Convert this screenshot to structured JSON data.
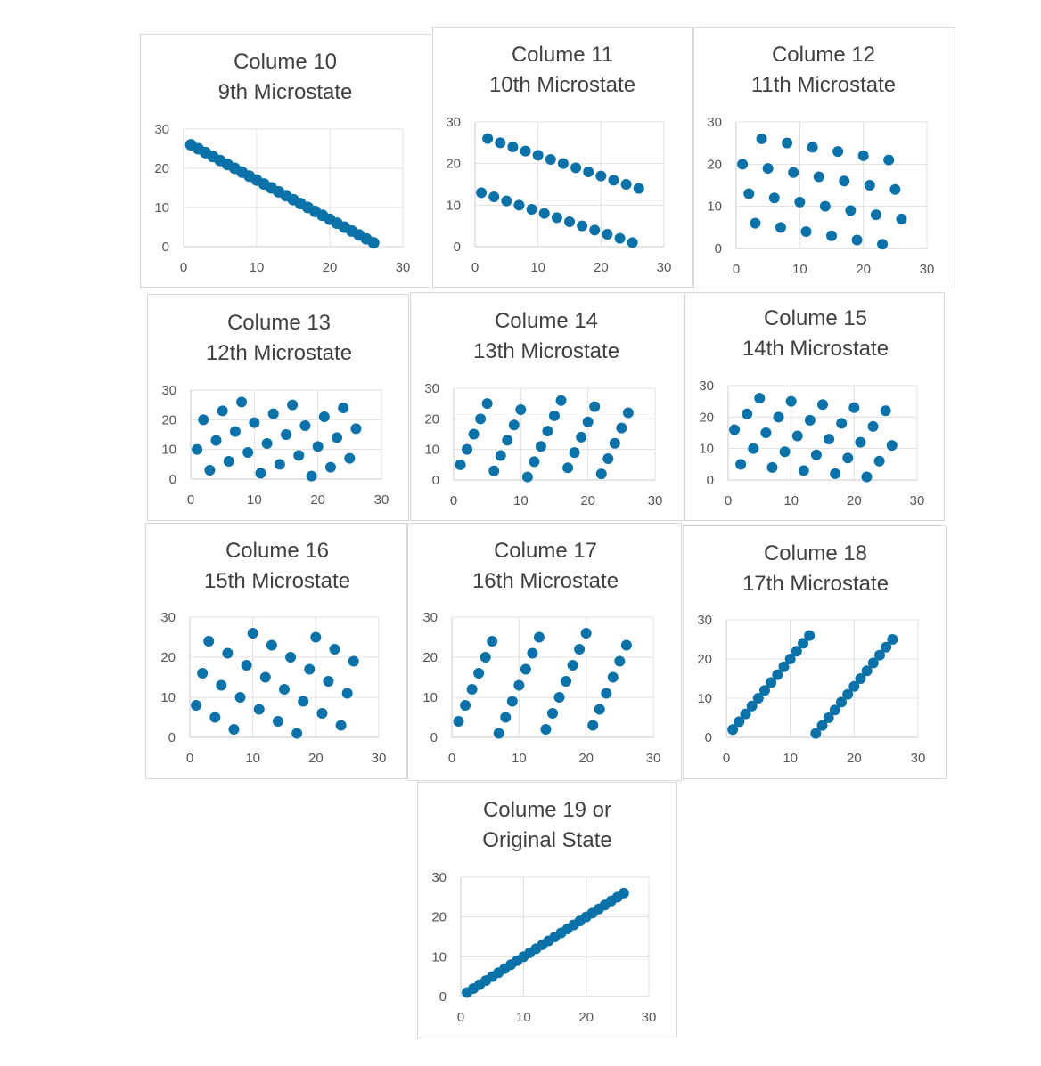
{
  "chart_data": [
    {
      "type": "scatter",
      "title": [
        "Colume 10",
        "9th Microstate"
      ],
      "xlim": [
        0,
        30
      ],
      "ylim": [
        0,
        30
      ],
      "xticks": [
        "0",
        "10",
        "20",
        "30"
      ],
      "yticks": [
        "0",
        "10",
        "20",
        "30"
      ],
      "grid": true,
      "color": "#0a72a8",
      "x": [
        1,
        2,
        3,
        4,
        5,
        6,
        7,
        8,
        9,
        10,
        11,
        12,
        13,
        14,
        15,
        16,
        17,
        18,
        19,
        20,
        21,
        22,
        23,
        24,
        25,
        26
      ],
      "y": [
        26,
        25,
        24,
        23,
        22,
        21,
        20,
        19,
        18,
        17,
        16,
        15,
        14,
        13,
        12,
        11,
        10,
        9,
        8,
        7,
        6,
        5,
        4,
        3,
        2,
        1
      ]
    },
    {
      "type": "scatter",
      "title": [
        "Colume 11",
        "10th Microstate"
      ],
      "xlim": [
        0,
        30
      ],
      "ylim": [
        0,
        30
      ],
      "xticks": [
        "0",
        "10",
        "20",
        "30"
      ],
      "yticks": [
        "0",
        "10",
        "20",
        "30"
      ],
      "grid": true,
      "color": "#0a72a8",
      "x": [
        1,
        2,
        3,
        4,
        5,
        6,
        7,
        8,
        9,
        10,
        11,
        12,
        13,
        14,
        15,
        16,
        17,
        18,
        19,
        20,
        21,
        22,
        23,
        24,
        25,
        26
      ],
      "y": [
        13,
        26,
        12,
        25,
        11,
        24,
        10,
        23,
        9,
        22,
        8,
        21,
        7,
        20,
        6,
        19,
        5,
        18,
        4,
        17,
        3,
        16,
        2,
        15,
        1,
        14
      ]
    },
    {
      "type": "scatter",
      "title": [
        "Colume 12",
        "11th Microstate"
      ],
      "xlim": [
        0,
        30
      ],
      "ylim": [
        0,
        30
      ],
      "xticks": [
        "0",
        "10",
        "20",
        "30"
      ],
      "yticks": [
        "0",
        "10",
        "20",
        "30"
      ],
      "grid": true,
      "color": "#0a72a8",
      "x": [
        1,
        2,
        3,
        4,
        5,
        6,
        7,
        8,
        9,
        10,
        11,
        12,
        13,
        14,
        15,
        16,
        17,
        18,
        19,
        20,
        21,
        22,
        23,
        24,
        25,
        26
      ],
      "y": [
        20,
        13,
        6,
        26,
        19,
        12,
        5,
        25,
        18,
        11,
        4,
        24,
        17,
        10,
        3,
        23,
        16,
        9,
        2,
        22,
        15,
        8,
        1,
        21,
        14,
        7
      ]
    },
    {
      "type": "scatter",
      "title": [
        "Colume 13",
        "12th Microstate"
      ],
      "xlim": [
        0,
        30
      ],
      "ylim": [
        0,
        30
      ],
      "xticks": [
        "0",
        "10",
        "20",
        "30"
      ],
      "yticks": [
        "0",
        "10",
        "20",
        "30"
      ],
      "grid": true,
      "color": "#0a72a8",
      "x": [
        1,
        2,
        3,
        4,
        5,
        6,
        7,
        8,
        9,
        10,
        11,
        12,
        13,
        14,
        15,
        16,
        17,
        18,
        19,
        20,
        21,
        22,
        23,
        24,
        25,
        26
      ],
      "y": [
        10,
        20,
        3,
        13,
        23,
        6,
        16,
        26,
        9,
        19,
        2,
        12,
        22,
        5,
        15,
        25,
        8,
        18,
        1,
        11,
        21,
        4,
        14,
        24,
        7,
        17
      ]
    },
    {
      "type": "scatter",
      "title": [
        "Colume 14",
        "13th Microstate"
      ],
      "xlim": [
        0,
        30
      ],
      "ylim": [
        0,
        30
      ],
      "xticks": [
        "0",
        "10",
        "20",
        "30"
      ],
      "yticks": [
        "0",
        "10",
        "20",
        "30"
      ],
      "grid": true,
      "color": "#0a72a8",
      "x": [
        1,
        2,
        3,
        4,
        5,
        6,
        7,
        8,
        9,
        10,
        11,
        12,
        13,
        14,
        15,
        16,
        17,
        18,
        19,
        20,
        21,
        22,
        23,
        24,
        25,
        26
      ],
      "y": [
        5,
        10,
        15,
        20,
        25,
        3,
        8,
        13,
        18,
        23,
        1,
        6,
        11,
        16,
        21,
        26,
        4,
        9,
        14,
        19,
        24,
        2,
        7,
        12,
        17,
        22
      ]
    },
    {
      "type": "scatter",
      "title": [
        "Colume 15",
        "14th Microstate"
      ],
      "xlim": [
        0,
        30
      ],
      "ylim": [
        0,
        30
      ],
      "xticks": [
        "0",
        "10",
        "20",
        "30"
      ],
      "yticks": [
        "0",
        "10",
        "20",
        "30"
      ],
      "grid": true,
      "color": "#0a72a8",
      "x": [
        1,
        2,
        3,
        4,
        5,
        6,
        7,
        8,
        9,
        10,
        11,
        12,
        13,
        14,
        15,
        16,
        17,
        18,
        19,
        20,
        21,
        22,
        23,
        24,
        25,
        26
      ],
      "y": [
        16,
        5,
        21,
        10,
        26,
        15,
        4,
        20,
        9,
        25,
        14,
        3,
        19,
        8,
        24,
        13,
        2,
        18,
        7,
        23,
        12,
        1,
        17,
        6,
        22,
        11
      ]
    },
    {
      "type": "scatter",
      "title": [
        "Colume 16",
        "15th Microstate"
      ],
      "xlim": [
        0,
        30
      ],
      "ylim": [
        0,
        30
      ],
      "xticks": [
        "0",
        "10",
        "20",
        "30"
      ],
      "yticks": [
        "0",
        "10",
        "20",
        "30"
      ],
      "grid": true,
      "color": "#0a72a8",
      "x": [
        1,
        2,
        3,
        4,
        5,
        6,
        7,
        8,
        9,
        10,
        11,
        12,
        13,
        14,
        15,
        16,
        17,
        18,
        19,
        20,
        21,
        22,
        23,
        24,
        25,
        26
      ],
      "y": [
        8,
        16,
        24,
        5,
        13,
        21,
        2,
        10,
        18,
        26,
        7,
        15,
        23,
        4,
        12,
        20,
        1,
        9,
        17,
        25,
        6,
        14,
        22,
        3,
        11,
        19
      ]
    },
    {
      "type": "scatter",
      "title": [
        "Colume 17",
        "16th Microstate"
      ],
      "xlim": [
        0,
        30
      ],
      "ylim": [
        0,
        30
      ],
      "xticks": [
        "0",
        "10",
        "20",
        "30"
      ],
      "yticks": [
        "0",
        "10",
        "20",
        "30"
      ],
      "grid": true,
      "color": "#0a72a8",
      "x": [
        1,
        2,
        3,
        4,
        5,
        6,
        7,
        8,
        9,
        10,
        11,
        12,
        13,
        14,
        15,
        16,
        17,
        18,
        19,
        20,
        21,
        22,
        23,
        24,
        25,
        26
      ],
      "y": [
        4,
        8,
        12,
        16,
        20,
        24,
        1,
        5,
        9,
        13,
        17,
        21,
        25,
        2,
        6,
        10,
        14,
        18,
        22,
        26,
        3,
        7,
        11,
        15,
        19,
        23
      ]
    },
    {
      "type": "scatter",
      "title": [
        "Colume 18",
        "17th Microstate"
      ],
      "xlim": [
        0,
        30
      ],
      "ylim": [
        0,
        30
      ],
      "xticks": [
        "0",
        "10",
        "20",
        "30"
      ],
      "yticks": [
        "0",
        "10",
        "20",
        "30"
      ],
      "grid": true,
      "color": "#0a72a8",
      "x": [
        1,
        2,
        3,
        4,
        5,
        6,
        7,
        8,
        9,
        10,
        11,
        12,
        13,
        14,
        15,
        16,
        17,
        18,
        19,
        20,
        21,
        22,
        23,
        24,
        25,
        26
      ],
      "y": [
        2,
        4,
        6,
        8,
        10,
        12,
        14,
        16,
        18,
        20,
        22,
        24,
        26,
        1,
        3,
        5,
        7,
        9,
        11,
        13,
        15,
        17,
        19,
        21,
        23,
        25
      ]
    },
    {
      "type": "scatter",
      "title": [
        "Colume 19 or",
        "Original State"
      ],
      "xlim": [
        0,
        30
      ],
      "ylim": [
        0,
        30
      ],
      "xticks": [
        "0",
        "10",
        "20",
        "30"
      ],
      "yticks": [
        "0",
        "10",
        "20",
        "30"
      ],
      "grid": true,
      "color": "#0a72a8",
      "x": [
        1,
        2,
        3,
        4,
        5,
        6,
        7,
        8,
        9,
        10,
        11,
        12,
        13,
        14,
        15,
        16,
        17,
        18,
        19,
        20,
        21,
        22,
        23,
        24,
        25,
        26
      ],
      "y": [
        1,
        2,
        3,
        4,
        5,
        6,
        7,
        8,
        9,
        10,
        11,
        12,
        13,
        14,
        15,
        16,
        17,
        18,
        19,
        20,
        21,
        22,
        23,
        24,
        25,
        26
      ]
    }
  ]
}
